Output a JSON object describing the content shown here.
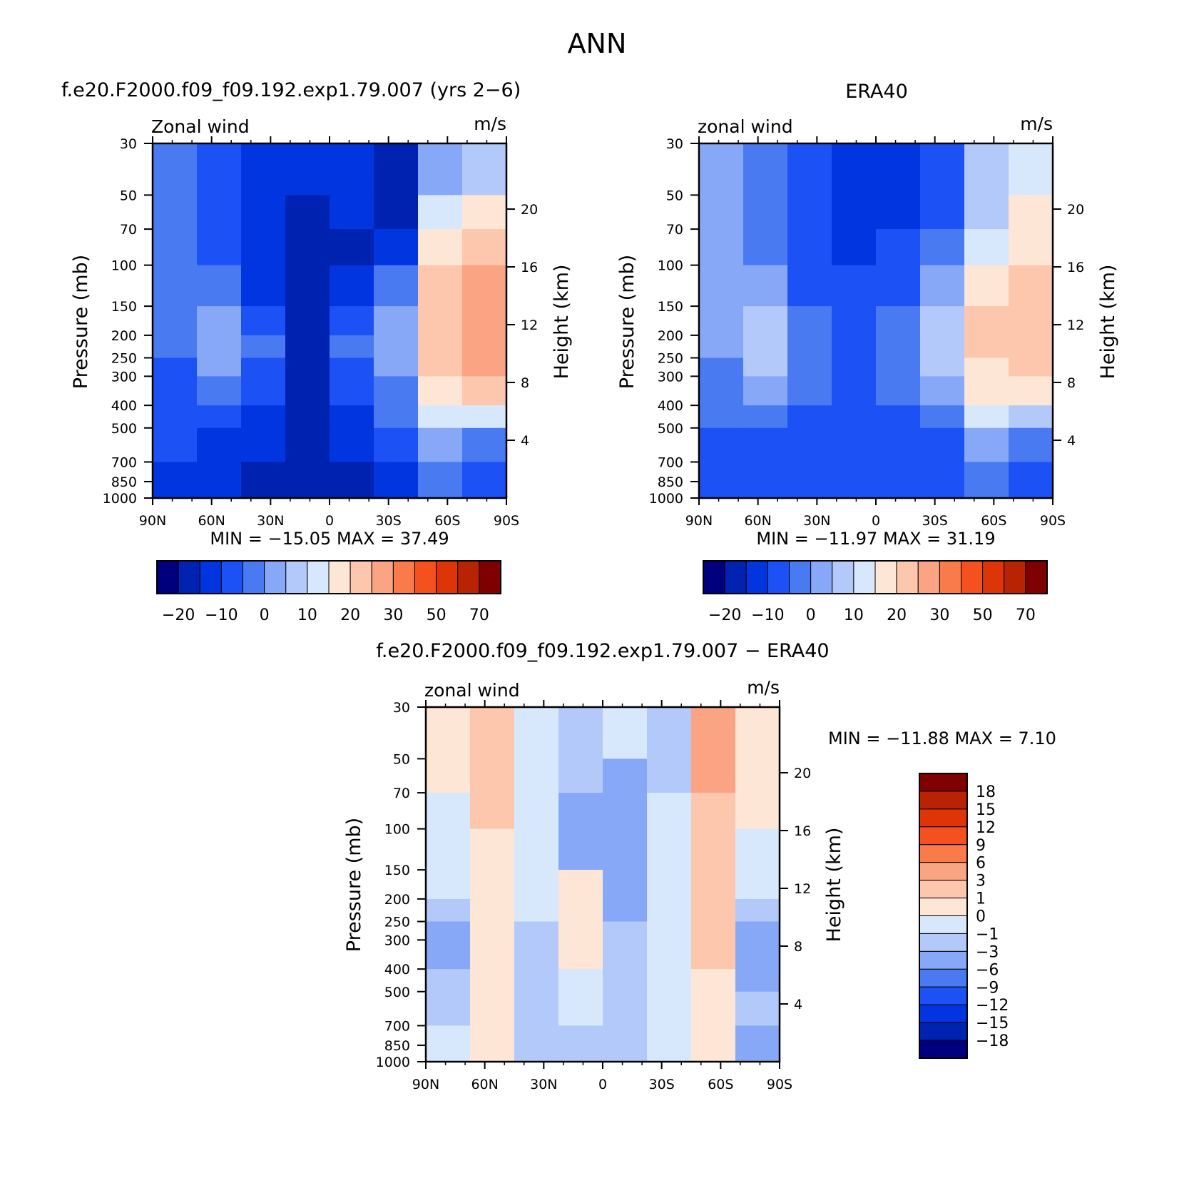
{
  "figure_title": "ANN",
  "chart_data": [
    {
      "type": "heatmap",
      "panel": "model",
      "title": "f.e20.F2000.f09_f09.192.exp1.79.007 (yrs 2−6)",
      "variable_label": "Zonal wind",
      "units_label": "m/s",
      "ylabel": "Pressure (mb)",
      "ylabel_right": "Height (km)",
      "stats": "MIN = −15.05   MAX =  37.49",
      "min": -15.05,
      "max": 37.49,
      "x": [
        "90N",
        "60N",
        "30N",
        "0",
        "30S",
        "60S",
        "90S"
      ],
      "y": [
        30,
        50,
        70,
        100,
        150,
        200,
        250,
        300,
        400,
        500,
        700,
        850,
        1000
      ],
      "y_right": [
        20,
        16,
        12,
        8,
        4
      ],
      "y_scale": "log",
      "colorbar_labels": [
        "−20",
        "−10",
        "0",
        "10",
        "20",
        "30",
        "50",
        "70"
      ],
      "values": [
        [
          4,
          3,
          2,
          2,
          2,
          1,
          5,
          6
        ],
        [
          4,
          3,
          2,
          1,
          2,
          1,
          7,
          8
        ],
        [
          4,
          3,
          2,
          1,
          1,
          2,
          8,
          9
        ],
        [
          4,
          4,
          2,
          1,
          2,
          4,
          9,
          10
        ],
        [
          4,
          5,
          3,
          1,
          3,
          5,
          9,
          10
        ],
        [
          4,
          5,
          4,
          1,
          4,
          5,
          9,
          10
        ],
        [
          3,
          5,
          3,
          1,
          3,
          5,
          9,
          10
        ],
        [
          3,
          4,
          3,
          1,
          3,
          4,
          8,
          9
        ],
        [
          3,
          3,
          2,
          1,
          2,
          4,
          7,
          7
        ],
        [
          3,
          2,
          2,
          1,
          2,
          3,
          5,
          4
        ],
        [
          2,
          2,
          1,
          1,
          1,
          2,
          4,
          3
        ]
      ]
    },
    {
      "type": "heatmap",
      "panel": "obs",
      "title": "ERA40",
      "variable_label": "zonal wind",
      "units_label": "m/s",
      "ylabel": "Pressure (mb)",
      "ylabel_right": "Height (km)",
      "stats": "MIN = −11.97   MAX =  31.19",
      "min": -11.97,
      "max": 31.19,
      "x": [
        "90N",
        "60N",
        "30N",
        "0",
        "30S",
        "60S",
        "90S"
      ],
      "y": [
        30,
        50,
        70,
        100,
        150,
        200,
        250,
        300,
        400,
        500,
        700,
        850,
        1000
      ],
      "y_right": [
        20,
        16,
        12,
        8,
        4
      ],
      "y_scale": "log",
      "colorbar_labels": [
        "−20",
        "−10",
        "0",
        "10",
        "20",
        "30",
        "50",
        "70"
      ],
      "values": [
        [
          5,
          4,
          3,
          2,
          2,
          3,
          6,
          7
        ],
        [
          5,
          4,
          3,
          2,
          2,
          3,
          6,
          8
        ],
        [
          5,
          4,
          3,
          2,
          3,
          4,
          7,
          8
        ],
        [
          5,
          5,
          3,
          3,
          3,
          5,
          8,
          9
        ],
        [
          5,
          6,
          4,
          3,
          4,
          6,
          9,
          9
        ],
        [
          5,
          6,
          4,
          3,
          4,
          6,
          9,
          9
        ],
        [
          4,
          6,
          4,
          3,
          4,
          6,
          8,
          9
        ],
        [
          4,
          5,
          4,
          3,
          4,
          5,
          8,
          8
        ],
        [
          4,
          4,
          3,
          3,
          3,
          4,
          7,
          6
        ],
        [
          3,
          3,
          3,
          3,
          3,
          3,
          5,
          4
        ],
        [
          3,
          3,
          3,
          3,
          3,
          3,
          4,
          3
        ]
      ]
    },
    {
      "type": "heatmap",
      "panel": "difference",
      "title": "f.e20.F2000.f09_f09.192.exp1.79.007 − ERA40",
      "variable_label": "zonal wind",
      "units_label": "m/s",
      "ylabel": "Pressure (mb)",
      "ylabel_right": "Height (km)",
      "stats": "MIN = −11.88   MAX =   7.10",
      "min": -11.88,
      "max": 7.1,
      "x": [
        "90N",
        "60N",
        "30N",
        "0",
        "30S",
        "60S",
        "90S"
      ],
      "y": [
        30,
        50,
        70,
        100,
        150,
        200,
        250,
        300,
        400,
        500,
        700,
        850,
        1000
      ],
      "y_right": [
        20,
        16,
        12,
        8,
        4
      ],
      "y_scale": "log",
      "colorbar_labels": [
        "18",
        "15",
        "12",
        "9",
        "6",
        "3",
        "1",
        "0",
        "−1",
        "−3",
        "−6",
        "−9",
        "−12",
        "−15",
        "−18"
      ],
      "values": [
        [
          8,
          9,
          7,
          6,
          7,
          6,
          10,
          8
        ],
        [
          8,
          9,
          7,
          6,
          5,
          6,
          10,
          8
        ],
        [
          7,
          9,
          7,
          5,
          5,
          7,
          9,
          8
        ],
        [
          7,
          8,
          7,
          5,
          5,
          7,
          9,
          7
        ],
        [
          7,
          8,
          7,
          8,
          5,
          7,
          9,
          7
        ],
        [
          6,
          8,
          7,
          8,
          5,
          7,
          9,
          6
        ],
        [
          5,
          8,
          6,
          8,
          6,
          7,
          9,
          5
        ],
        [
          5,
          8,
          6,
          8,
          6,
          7,
          9,
          5
        ],
        [
          6,
          8,
          6,
          7,
          6,
          7,
          8,
          5
        ],
        [
          6,
          8,
          6,
          7,
          6,
          7,
          8,
          6
        ],
        [
          7,
          8,
          6,
          6,
          6,
          7,
          8,
          5
        ]
      ]
    }
  ],
  "colors": {
    "model_palette": [
      "#00007e",
      "#0022b0",
      "#0035e0",
      "#1c52f5",
      "#4a7af2",
      "#87a8f7",
      "#b2c9fa",
      "#d8e8fc",
      "#fde6d6",
      "#fdc7ae",
      "#fba484",
      "#f97b4a",
      "#f4511f",
      "#de3508",
      "#b82403",
      "#7f0000"
    ],
    "diff_palette": [
      "#00007e",
      "#0022b0",
      "#0035e0",
      "#1c52f5",
      "#4a7af2",
      "#87a8f7",
      "#b2c9fa",
      "#d8e8fc",
      "#fde6d6",
      "#fdc7ae",
      "#fba484",
      "#f97b4a",
      "#f4511f",
      "#de3508",
      "#b82403",
      "#7f0000"
    ]
  }
}
